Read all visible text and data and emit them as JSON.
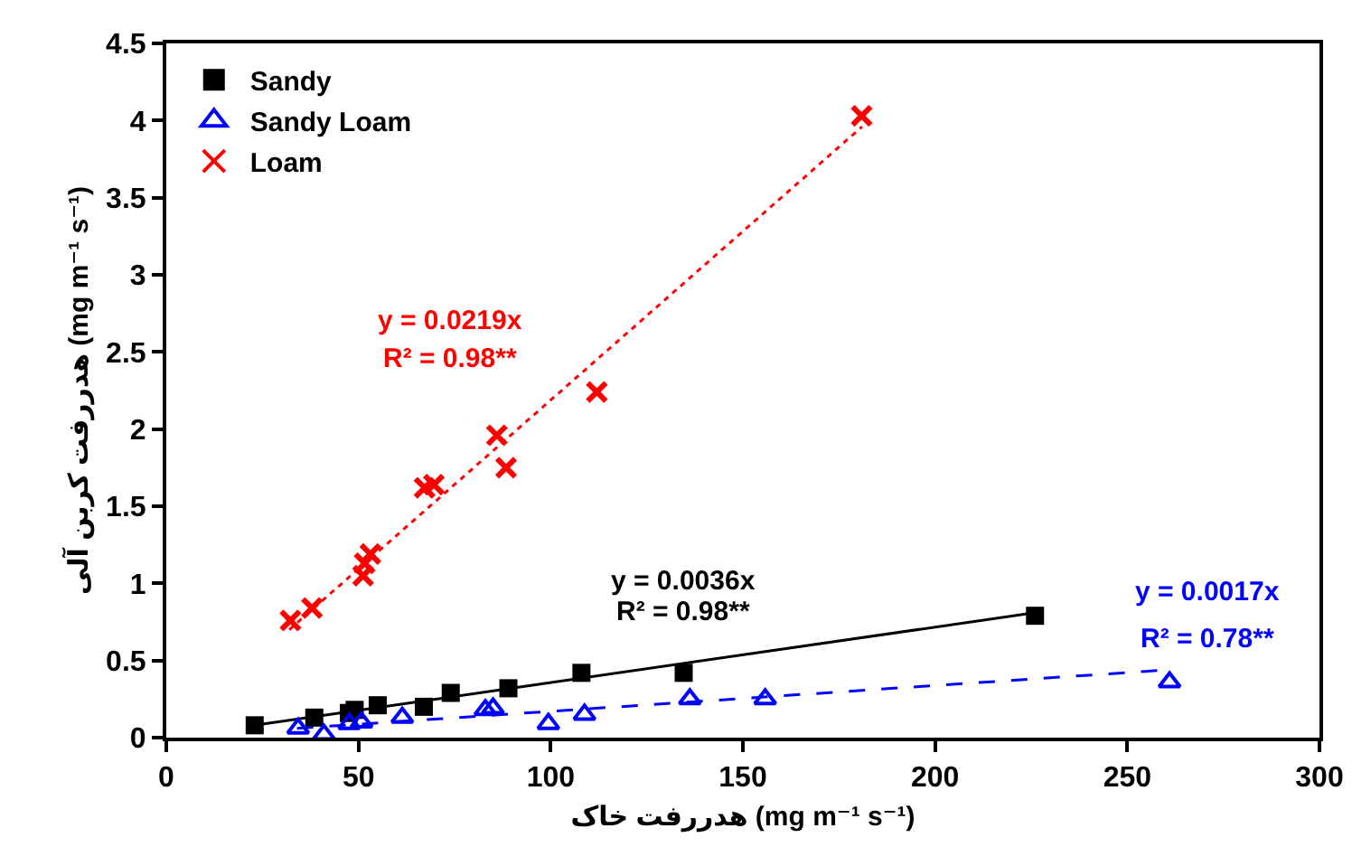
{
  "chart_data": {
    "type": "scatter",
    "xlabel": "هدررفت خاک (mg m⁻¹ s⁻¹)",
    "ylabel": "هدررفت کربن آلی (mg m⁻¹ s⁻¹)",
    "xlim": [
      0,
      300
    ],
    "xticks": [
      0,
      50,
      100,
      150,
      200,
      250,
      300
    ],
    "ylim": [
      0,
      4.5
    ],
    "yticks": [
      0,
      0.5,
      1,
      1.5,
      2,
      2.5,
      3,
      3.5,
      4,
      4.5
    ],
    "grid": false,
    "legend": "top left",
    "series": [
      {
        "name": "Sandy",
        "type": "scatter",
        "marker": "square",
        "color": "#000000",
        "x": [
          23,
          38.5,
          47.5,
          49,
          55,
          67,
          74,
          89,
          108,
          134.6,
          226
        ],
        "values": [
          0.08,
          0.13,
          0.16,
          0.18,
          0.21,
          0.2,
          0.29,
          0.32,
          0.42,
          0.42,
          0.79
        ]
      },
      {
        "name": "Sandy Loam",
        "type": "scatter",
        "marker": "triangle",
        "color": "#0000ff",
        "x": [
          34.3,
          41,
          47.6,
          50.8,
          61.4,
          83,
          85,
          99.4,
          108.8,
          136.2,
          155.8,
          261
        ],
        "values": [
          0.06,
          0.02,
          0.09,
          0.1,
          0.13,
          0.18,
          0.19,
          0.09,
          0.15,
          0.25,
          0.25,
          0.36
        ]
      },
      {
        "name": "Loam",
        "type": "scatter",
        "marker": "cross",
        "color": "#ff0000",
        "x": [
          32.3,
          37.9,
          51.2,
          51.6,
          53.1,
          67.2,
          69.6,
          86,
          88.4,
          112,
          180.9
        ],
        "values": [
          0.76,
          0.84,
          1.05,
          1.13,
          1.19,
          1.62,
          1.64,
          1.96,
          1.75,
          2.24,
          4.03
        ]
      },
      {
        "type": "line",
        "line_style": "solid",
        "color": "#000000",
        "x": [
          23,
          226
        ],
        "values": [
          0.08,
          0.81
        ]
      },
      {
        "type": "line",
        "line_style": "dashed",
        "color": "#0000ff",
        "x": [
          34,
          261
        ],
        "values": [
          0.06,
          0.44
        ]
      },
      {
        "type": "line",
        "line_style": "dotted",
        "color": "#ff0000",
        "x": [
          32,
          181
        ],
        "values": [
          0.7,
          3.96
        ]
      }
    ],
    "annotations": [
      "y = 0.0036x",
      "R² = 0.98**",
      "y = 0.0017x",
      "R² = 0.78**",
      "y = 0.0219x",
      "R² = 0.98**"
    ]
  }
}
